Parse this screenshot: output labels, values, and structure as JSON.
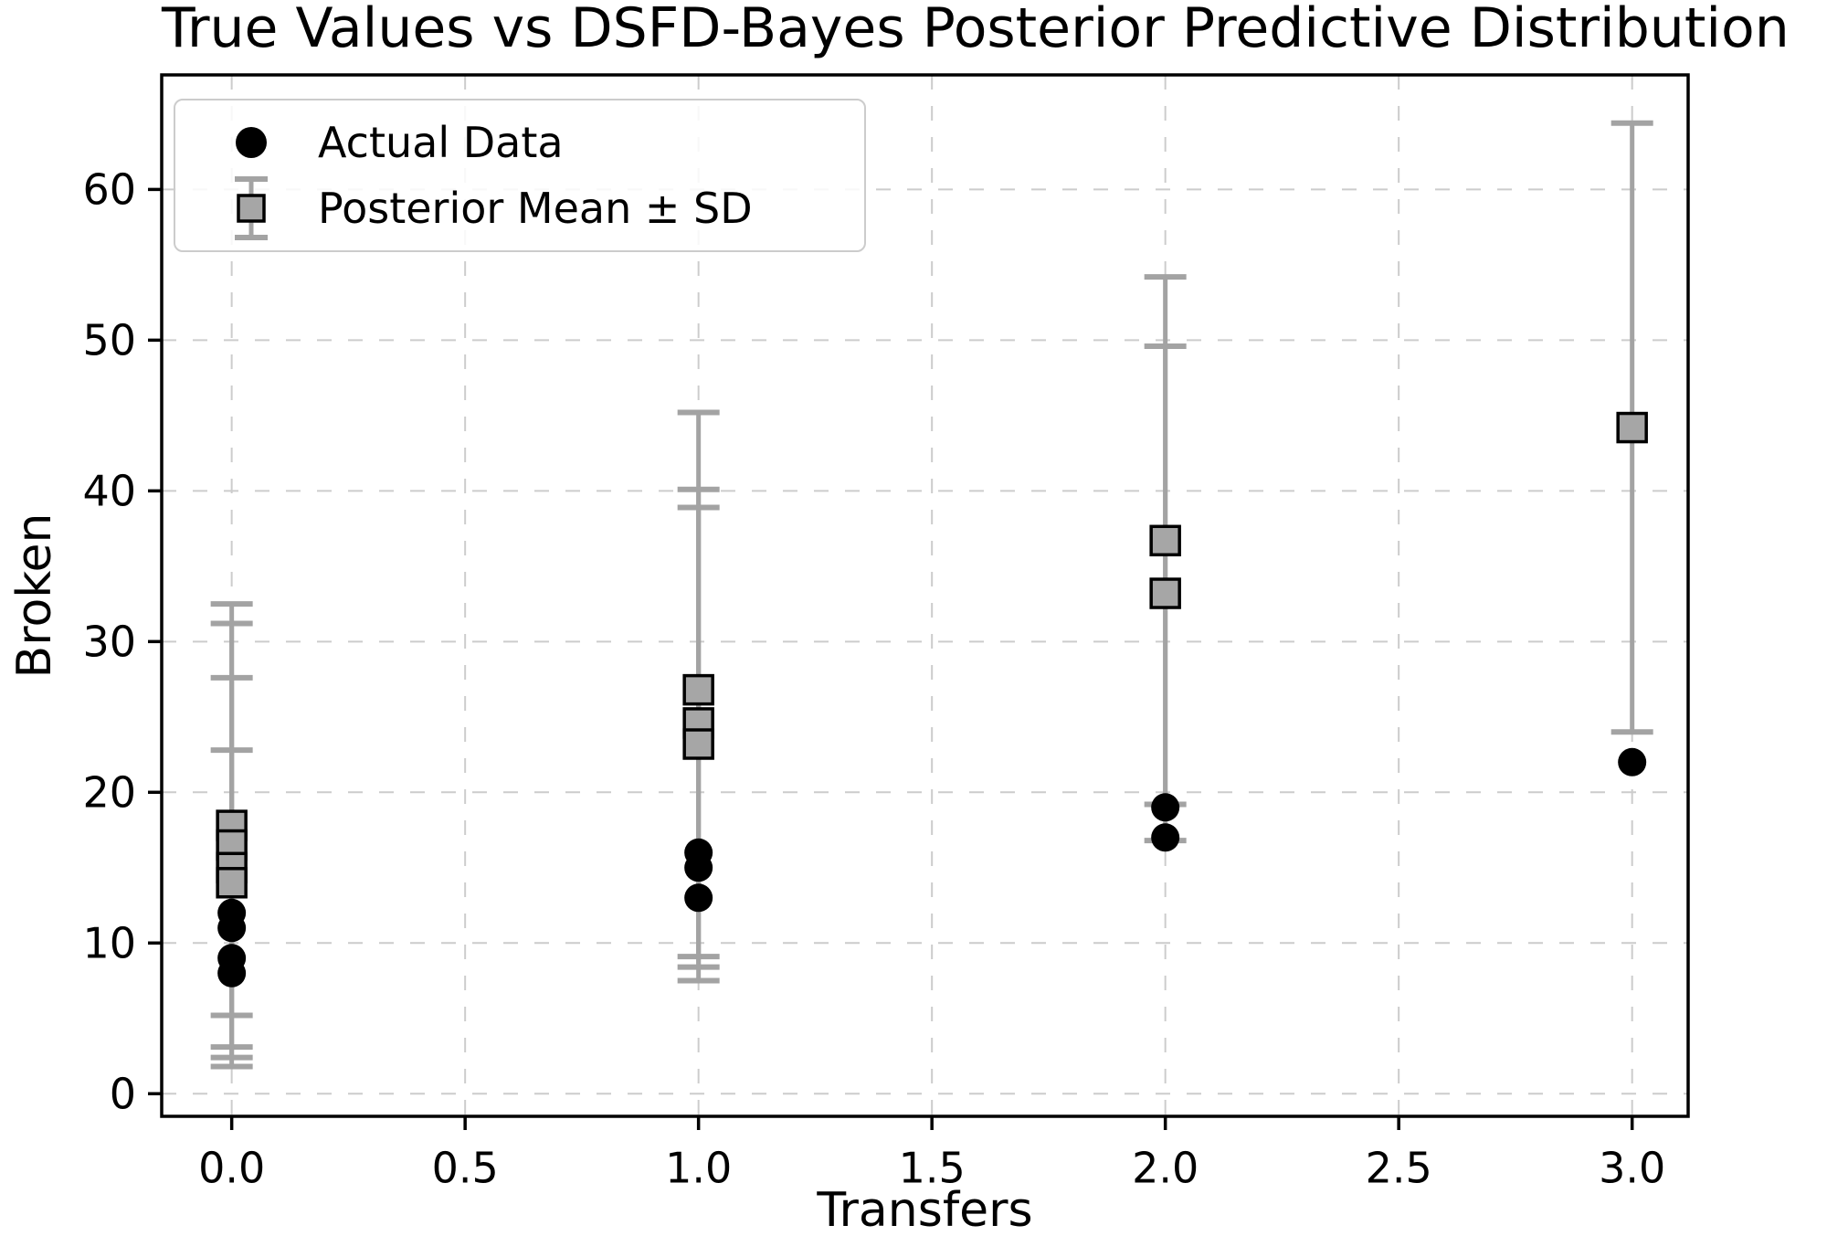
{
  "chart_data": {
    "type": "scatter",
    "title": "True Values vs DSFD-Bayes Posterior Predictive Distribution",
    "xlabel": "Transfers",
    "ylabel": "Broken",
    "xlim": [
      -0.15,
      3.12
    ],
    "ylim": [
      -1.5,
      67.6
    ],
    "grid": true,
    "x_ticks": [
      0.0,
      0.5,
      1.0,
      1.5,
      2.0,
      2.5,
      3.0
    ],
    "x_tick_labels": [
      "0.0",
      "0.5",
      "1.0",
      "1.5",
      "2.0",
      "2.5",
      "3.0"
    ],
    "y_ticks": [
      0,
      10,
      20,
      30,
      40,
      50,
      60
    ],
    "y_tick_labels": [
      "0",
      "10",
      "20",
      "30",
      "40",
      "50",
      "60"
    ],
    "legend": {
      "position": "upper-left",
      "entries": [
        {
          "label": "Actual Data",
          "marker": "circle",
          "color": "#000000"
        },
        {
          "label": "Posterior Mean ± SD",
          "marker": "square-errorbar",
          "fill": "#a6a6a6",
          "edge": "#000000",
          "bar_color": "#a3a3a3"
        }
      ]
    },
    "series": [
      {
        "name": "Actual Data",
        "type": "scatter",
        "marker": "circle",
        "color": "#000000",
        "points": [
          {
            "x": 0,
            "y": 12
          },
          {
            "x": 0,
            "y": 11
          },
          {
            "x": 0,
            "y": 9
          },
          {
            "x": 0,
            "y": 8
          },
          {
            "x": 1,
            "y": 16
          },
          {
            "x": 1,
            "y": 15
          },
          {
            "x": 1,
            "y": 13
          },
          {
            "x": 2,
            "y": 19
          },
          {
            "x": 2,
            "y": 17
          },
          {
            "x": 3,
            "y": 22
          }
        ]
      },
      {
        "name": "Posterior Mean ± SD",
        "type": "errorbar",
        "marker": "square",
        "fill": "#a6a6a6",
        "edge": "#000000",
        "bar_color": "#a3a3a3",
        "points": [
          {
            "x": 0,
            "mean": 17.8,
            "sd": 14.7
          },
          {
            "x": 0,
            "mean": 16.5,
            "sd": 14.7
          },
          {
            "x": 0,
            "mean": 15.0,
            "sd": 12.6
          },
          {
            "x": 0,
            "mean": 14.0,
            "sd": 8.8
          },
          {
            "x": 1,
            "mean": 26.8,
            "sd": 18.4
          },
          {
            "x": 1,
            "mean": 24.6,
            "sd": 15.5
          },
          {
            "x": 1,
            "mean": 23.2,
            "sd": 15.7
          },
          {
            "x": 2,
            "mean": 36.7,
            "sd": 17.5
          },
          {
            "x": 2,
            "mean": 33.2,
            "sd": 16.4
          },
          {
            "x": 3,
            "mean": 44.2,
            "sd": 20.2
          }
        ]
      }
    ],
    "colors": {
      "grid": "#cccccc",
      "spine": "#000000",
      "tick": "#000000",
      "text": "#000000"
    }
  }
}
